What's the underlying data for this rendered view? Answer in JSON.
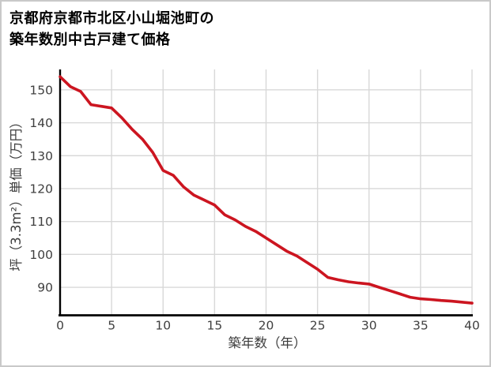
{
  "title": {
    "line1": "京都府京都市北区小山堀池町の",
    "line2": "築年数別中古戸建て価格"
  },
  "chart_data": {
    "type": "line",
    "title": "京都府京都市北区小山堀池町の築年数別中古戸建て価格",
    "xlabel": "築年数（年）",
    "ylabel": "坪（3.3m²）単価（万円）",
    "x": [
      0,
      1,
      2,
      3,
      4,
      5,
      6,
      7,
      8,
      9,
      10,
      11,
      12,
      13,
      14,
      15,
      16,
      17,
      18,
      19,
      20,
      21,
      22,
      23,
      24,
      25,
      26,
      27,
      28,
      29,
      30,
      31,
      32,
      33,
      34,
      35,
      36,
      37,
      38,
      39,
      40
    ],
    "values": [
      154,
      151,
      149.5,
      145.5,
      145,
      144.5,
      141.5,
      138,
      135,
      131,
      125.5,
      124,
      120.5,
      118,
      116.5,
      115,
      112,
      110.5,
      108.5,
      107,
      105,
      103,
      101,
      99.5,
      97.5,
      95.5,
      93,
      92.3,
      91.7,
      91.3,
      91,
      90,
      89,
      88,
      87,
      86.5,
      86.3,
      86,
      85.8,
      85.5,
      85.2
    ],
    "xticks": [
      0,
      5,
      10,
      15,
      20,
      25,
      30,
      35,
      40
    ],
    "yticks": [
      90,
      100,
      110,
      120,
      130,
      140,
      150
    ],
    "xlim": [
      0,
      40
    ],
    "ylim": [
      81.5,
      156.2
    ],
    "grid": true,
    "legend": "none",
    "colors": {
      "line": "#cc1520",
      "grid": "#d8d8d8",
      "axis": "#000000",
      "tick_text": "#404040",
      "frame_border": "#c9c9c9"
    }
  }
}
